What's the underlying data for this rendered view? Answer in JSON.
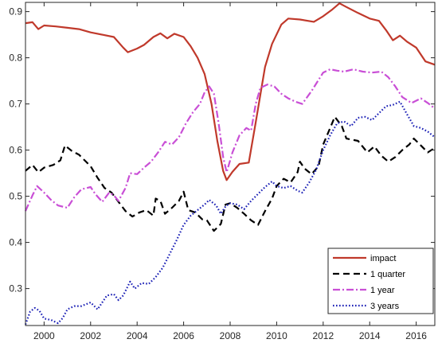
{
  "chart_data": {
    "type": "line",
    "title": "",
    "xlabel": "",
    "ylabel": "",
    "xlim": [
      1999.2,
      2016.8
    ],
    "ylim": [
      0.22,
      0.92
    ],
    "x_ticks": [
      2000,
      2002,
      2004,
      2006,
      2008,
      2010,
      2012,
      2014,
      2016
    ],
    "x_tick_labels": [
      "2000",
      "2002",
      "2004",
      "2006",
      "2008",
      "2010",
      "2012",
      "2014",
      "2016"
    ],
    "y_ticks": [
      0.3,
      0.4,
      0.5,
      0.6,
      0.7,
      0.8,
      0.9
    ],
    "y_tick_labels": [
      "0.3",
      "0.4",
      "0.5",
      "0.6",
      "0.7",
      "0.8",
      "0.9"
    ],
    "grid": false,
    "legend_position": "bottom-right",
    "series": [
      {
        "name": "impact",
        "color": "#c0392b",
        "line_style": "solid",
        "points": [
          [
            1999.2,
            0.875
          ],
          [
            1999.5,
            0.877
          ],
          [
            1999.75,
            0.862
          ],
          [
            2000,
            0.87
          ],
          [
            2000.5,
            0.868
          ],
          [
            2001,
            0.865
          ],
          [
            2001.5,
            0.862
          ],
          [
            2002,
            0.855
          ],
          [
            2002.5,
            0.85
          ],
          [
            2003,
            0.845
          ],
          [
            2003.4,
            0.822
          ],
          [
            2003.6,
            0.812
          ],
          [
            2004,
            0.82
          ],
          [
            2004.3,
            0.828
          ],
          [
            2004.7,
            0.845
          ],
          [
            2005,
            0.853
          ],
          [
            2005.3,
            0.842
          ],
          [
            2005.6,
            0.852
          ],
          [
            2006,
            0.845
          ],
          [
            2006.3,
            0.825
          ],
          [
            2006.6,
            0.8
          ],
          [
            2006.9,
            0.765
          ],
          [
            2007.2,
            0.7
          ],
          [
            2007.45,
            0.62
          ],
          [
            2007.7,
            0.555
          ],
          [
            2007.85,
            0.535
          ],
          [
            2008.1,
            0.553
          ],
          [
            2008.4,
            0.57
          ],
          [
            2008.8,
            0.573
          ],
          [
            2009.1,
            0.66
          ],
          [
            2009.5,
            0.78
          ],
          [
            2009.8,
            0.83
          ],
          [
            2010.2,
            0.872
          ],
          [
            2010.5,
            0.885
          ],
          [
            2011,
            0.883
          ],
          [
            2011.6,
            0.878
          ],
          [
            2012,
            0.89
          ],
          [
            2012.4,
            0.905
          ],
          [
            2012.7,
            0.918
          ],
          [
            2013,
            0.91
          ],
          [
            2013.5,
            0.897
          ],
          [
            2014,
            0.885
          ],
          [
            2014.4,
            0.88
          ],
          [
            2014.7,
            0.86
          ],
          [
            2015,
            0.838
          ],
          [
            2015.3,
            0.848
          ],
          [
            2015.6,
            0.835
          ],
          [
            2016,
            0.822
          ],
          [
            2016.4,
            0.792
          ],
          [
            2016.8,
            0.785
          ]
        ]
      },
      {
        "name": "1 quarter",
        "color": "#000000",
        "line_style": "dashed",
        "points": [
          [
            1999.2,
            0.555
          ],
          [
            1999.5,
            0.568
          ],
          [
            1999.75,
            0.552
          ],
          [
            2000,
            0.562
          ],
          [
            2000.4,
            0.568
          ],
          [
            2000.7,
            0.578
          ],
          [
            2000.9,
            0.61
          ],
          [
            2001.2,
            0.598
          ],
          [
            2001.5,
            0.59
          ],
          [
            2002,
            0.565
          ],
          [
            2002.3,
            0.54
          ],
          [
            2002.6,
            0.518
          ],
          [
            2002.9,
            0.508
          ],
          [
            2003.2,
            0.488
          ],
          [
            2003.5,
            0.468
          ],
          [
            2003.8,
            0.456
          ],
          [
            2004.1,
            0.465
          ],
          [
            2004.4,
            0.47
          ],
          [
            2004.7,
            0.458
          ],
          [
            2004.8,
            0.495
          ],
          [
            2005,
            0.49
          ],
          [
            2005.2,
            0.462
          ],
          [
            2005.5,
            0.475
          ],
          [
            2005.8,
            0.49
          ],
          [
            2006,
            0.51
          ],
          [
            2006.2,
            0.47
          ],
          [
            2006.5,
            0.465
          ],
          [
            2006.8,
            0.45
          ],
          [
            2007,
            0.448
          ],
          [
            2007.3,
            0.425
          ],
          [
            2007.6,
            0.44
          ],
          [
            2007.8,
            0.482
          ],
          [
            2008,
            0.485
          ],
          [
            2008.3,
            0.475
          ],
          [
            2008.6,
            0.462
          ],
          [
            2008.9,
            0.448
          ],
          [
            2009.2,
            0.438
          ],
          [
            2009.5,
            0.468
          ],
          [
            2009.8,
            0.495
          ],
          [
            2010,
            0.522
          ],
          [
            2010.3,
            0.538
          ],
          [
            2010.6,
            0.53
          ],
          [
            2010.9,
            0.552
          ],
          [
            2011,
            0.575
          ],
          [
            2011.2,
            0.56
          ],
          [
            2011.5,
            0.548
          ],
          [
            2011.8,
            0.565
          ],
          [
            2012,
            0.612
          ],
          [
            2012.3,
            0.648
          ],
          [
            2012.5,
            0.672
          ],
          [
            2012.8,
            0.652
          ],
          [
            2013,
            0.625
          ],
          [
            2013.5,
            0.62
          ],
          [
            2013.9,
            0.595
          ],
          [
            2014.2,
            0.608
          ],
          [
            2014.5,
            0.588
          ],
          [
            2014.8,
            0.575
          ],
          [
            2015.1,
            0.585
          ],
          [
            2015.4,
            0.6
          ],
          [
            2015.7,
            0.612
          ],
          [
            2015.9,
            0.625
          ],
          [
            2016.2,
            0.61
          ],
          [
            2016.5,
            0.595
          ],
          [
            2016.8,
            0.605
          ]
        ]
      },
      {
        "name": "1 year",
        "color": "#c94fd6",
        "line_style": "dashdot",
        "points": [
          [
            1999.2,
            0.468
          ],
          [
            1999.5,
            0.502
          ],
          [
            1999.7,
            0.522
          ],
          [
            2000,
            0.508
          ],
          [
            2000.3,
            0.492
          ],
          [
            2000.6,
            0.48
          ],
          [
            2001,
            0.475
          ],
          [
            2001.3,
            0.498
          ],
          [
            2001.6,
            0.515
          ],
          [
            2002,
            0.52
          ],
          [
            2002.2,
            0.505
          ],
          [
            2002.5,
            0.488
          ],
          [
            2002.8,
            0.508
          ],
          [
            2003,
            0.502
          ],
          [
            2003.2,
            0.49
          ],
          [
            2003.5,
            0.518
          ],
          [
            2003.7,
            0.55
          ],
          [
            2004,
            0.548
          ],
          [
            2004.3,
            0.562
          ],
          [
            2004.6,
            0.575
          ],
          [
            2004.9,
            0.595
          ],
          [
            2005.2,
            0.618
          ],
          [
            2005.5,
            0.612
          ],
          [
            2005.8,
            0.628
          ],
          [
            2006.1,
            0.658
          ],
          [
            2006.4,
            0.682
          ],
          [
            2006.7,
            0.7
          ],
          [
            2006.9,
            0.725
          ],
          [
            2007.1,
            0.738
          ],
          [
            2007.3,
            0.722
          ],
          [
            2007.5,
            0.66
          ],
          [
            2007.7,
            0.585
          ],
          [
            2007.85,
            0.552
          ],
          [
            2008.1,
            0.595
          ],
          [
            2008.4,
            0.632
          ],
          [
            2008.7,
            0.648
          ],
          [
            2008.9,
            0.642
          ],
          [
            2009.1,
            0.7
          ],
          [
            2009.3,
            0.735
          ],
          [
            2009.6,
            0.742
          ],
          [
            2009.9,
            0.738
          ],
          [
            2010.2,
            0.722
          ],
          [
            2010.5,
            0.712
          ],
          [
            2010.8,
            0.705
          ],
          [
            2011.1,
            0.7
          ],
          [
            2011.5,
            0.728
          ],
          [
            2011.8,
            0.752
          ],
          [
            2012,
            0.768
          ],
          [
            2012.3,
            0.775
          ],
          [
            2012.6,
            0.772
          ],
          [
            2012.9,
            0.77
          ],
          [
            2013.3,
            0.775
          ],
          [
            2013.7,
            0.77
          ],
          [
            2014.1,
            0.768
          ],
          [
            2014.5,
            0.77
          ],
          [
            2014.8,
            0.758
          ],
          [
            2015.1,
            0.738
          ],
          [
            2015.4,
            0.715
          ],
          [
            2015.8,
            0.702
          ],
          [
            2016.2,
            0.712
          ],
          [
            2016.5,
            0.702
          ],
          [
            2016.8,
            0.69
          ]
        ]
      },
      {
        "name": "3 years",
        "color": "#1a1fb5",
        "line_style": "dotted",
        "points": [
          [
            1999.2,
            0.222
          ],
          [
            1999.4,
            0.25
          ],
          [
            1999.6,
            0.258
          ],
          [
            1999.8,
            0.252
          ],
          [
            2000,
            0.235
          ],
          [
            2000.3,
            0.232
          ],
          [
            2000.6,
            0.225
          ],
          [
            2000.8,
            0.236
          ],
          [
            2001,
            0.255
          ],
          [
            2001.3,
            0.262
          ],
          [
            2001.6,
            0.262
          ],
          [
            2002,
            0.27
          ],
          [
            2002.3,
            0.255
          ],
          [
            2002.5,
            0.27
          ],
          [
            2002.7,
            0.285
          ],
          [
            2003,
            0.288
          ],
          [
            2003.2,
            0.275
          ],
          [
            2003.4,
            0.285
          ],
          [
            2003.7,
            0.315
          ],
          [
            2003.9,
            0.3
          ],
          [
            2004.2,
            0.312
          ],
          [
            2004.5,
            0.31
          ],
          [
            2004.8,
            0.325
          ],
          [
            2005.1,
            0.345
          ],
          [
            2005.4,
            0.375
          ],
          [
            2005.7,
            0.405
          ],
          [
            2006,
            0.438
          ],
          [
            2006.3,
            0.458
          ],
          [
            2006.6,
            0.47
          ],
          [
            2006.9,
            0.482
          ],
          [
            2007.1,
            0.492
          ],
          [
            2007.4,
            0.48
          ],
          [
            2007.6,
            0.462
          ],
          [
            2007.8,
            0.478
          ],
          [
            2008,
            0.485
          ],
          [
            2008.3,
            0.482
          ],
          [
            2008.6,
            0.472
          ],
          [
            2008.9,
            0.49
          ],
          [
            2009.2,
            0.505
          ],
          [
            2009.5,
            0.52
          ],
          [
            2009.8,
            0.532
          ],
          [
            2010,
            0.522
          ],
          [
            2010.3,
            0.518
          ],
          [
            2010.6,
            0.522
          ],
          [
            2010.9,
            0.512
          ],
          [
            2011.1,
            0.508
          ],
          [
            2011.4,
            0.53
          ],
          [
            2011.7,
            0.558
          ],
          [
            2012,
            0.6
          ],
          [
            2012.3,
            0.632
          ],
          [
            2012.6,
            0.658
          ],
          [
            2012.9,
            0.662
          ],
          [
            2013.2,
            0.652
          ],
          [
            2013.5,
            0.67
          ],
          [
            2013.8,
            0.672
          ],
          [
            2014.1,
            0.665
          ],
          [
            2014.4,
            0.68
          ],
          [
            2014.7,
            0.695
          ],
          [
            2015,
            0.698
          ],
          [
            2015.3,
            0.705
          ],
          [
            2015.6,
            0.678
          ],
          [
            2015.9,
            0.652
          ],
          [
            2016.2,
            0.648
          ],
          [
            2016.5,
            0.64
          ],
          [
            2016.8,
            0.628
          ]
        ]
      }
    ]
  }
}
